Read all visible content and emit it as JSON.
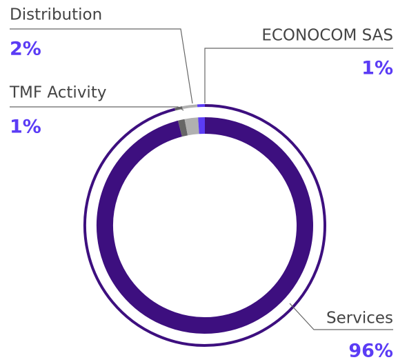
{
  "chart_data": {
    "type": "donut",
    "categories": [
      "Services",
      "TMF Activity",
      "Distribution",
      "ECONOCOM SAS"
    ],
    "values": [
      96,
      1,
      2,
      1
    ],
    "value_labels": [
      "96%",
      "1%",
      "2%",
      "1%"
    ],
    "colors": [
      "#3d0f7f",
      "#666666",
      "#b0b0b0",
      "#5b3cf5"
    ]
  }
}
